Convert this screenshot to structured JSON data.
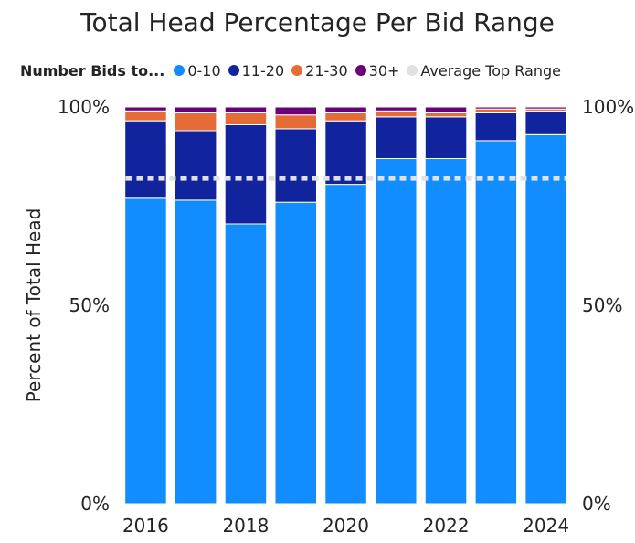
{
  "chart_data": {
    "type": "bar",
    "stacked": true,
    "title": "Total Head Percentage Per Bid Range",
    "legend_title": "Number Bids to...",
    "legend_placement": "top",
    "ylabel": "Percent of Total Head",
    "ylim": [
      0,
      100
    ],
    "y_ticks": [
      "0%",
      "50%",
      "100%"
    ],
    "y_ticks_right": [
      "0%",
      "50%",
      "100%"
    ],
    "grid": false,
    "categories": [
      "2016",
      "2017",
      "2018",
      "2019",
      "2020",
      "2021",
      "2022",
      "2023",
      "2024"
    ],
    "x_tick_labels": [
      "2016",
      "2018",
      "2020",
      "2022",
      "2024"
    ],
    "series": [
      {
        "name": "0-10",
        "color": "#118DFF",
        "values": [
          77.0,
          76.5,
          70.5,
          76.0,
          80.5,
          87.0,
          87.0,
          91.5,
          93.0
        ]
      },
      {
        "name": "11-20",
        "color": "#12239E",
        "values": [
          19.5,
          17.5,
          25.0,
          18.5,
          16.0,
          10.5,
          10.5,
          7.0,
          6.0
        ]
      },
      {
        "name": "21-30",
        "color": "#E66C37",
        "values": [
          2.5,
          4.5,
          3.0,
          3.5,
          2.0,
          1.5,
          1.0,
          1.0,
          0.5
        ]
      },
      {
        "name": "30+",
        "color": "#6B007B",
        "values": [
          1.0,
          1.5,
          1.5,
          2.0,
          1.5,
          1.0,
          1.5,
          0.5,
          0.5
        ]
      }
    ],
    "reference_line": {
      "name": "Average Top Range",
      "color": "#E1E1E1",
      "value": 82
    }
  }
}
